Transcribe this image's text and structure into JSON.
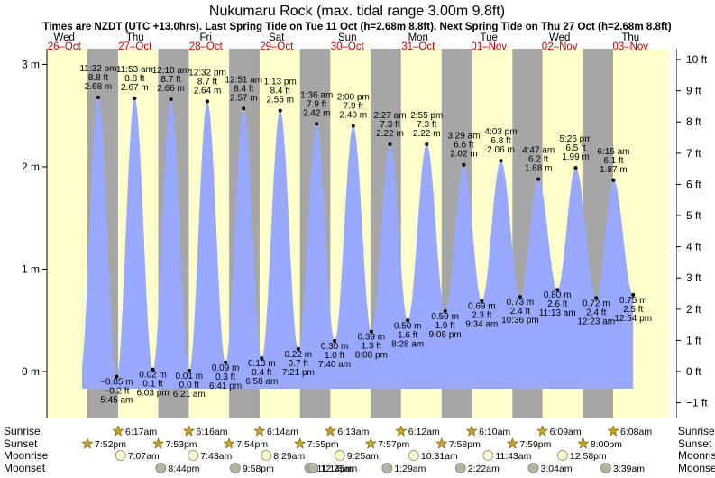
{
  "chart_data": {
    "type": "area",
    "title": "Nukumaru Rock (max. tidal range 3.00m 9.8ft)",
    "subtitle": "Times are NZDT (UTC +13.0hrs). Last Spring Tide on Tue 11 Oct (h=2.68m 8.8ft). Next Spring Tide on Thu 27 Oct (h=2.68m 8.8ft)",
    "days": [
      {
        "dow": "Wed",
        "date": "26–Oct"
      },
      {
        "dow": "Thu",
        "date": "27–Oct"
      },
      {
        "dow": "Fri",
        "date": "28–Oct"
      },
      {
        "dow": "Sat",
        "date": "29–Oct"
      },
      {
        "dow": "Sun",
        "date": "30–Oct"
      },
      {
        "dow": "Mon",
        "date": "31–Oct"
      },
      {
        "dow": "Tue",
        "date": "01–Nov"
      },
      {
        "dow": "Wed",
        "date": "02–Nov"
      },
      {
        "dow": "Thu",
        "date": "03–Nov"
      }
    ],
    "start_day": "Wed 26-Oct",
    "left_axis": {
      "unit": "m",
      "ticks": [
        0,
        1,
        2,
        3
      ],
      "tick_labels": [
        "0 m",
        "1 m",
        "2 m",
        "3 m"
      ],
      "ylim": [
        -0.32,
        3.08
      ]
    },
    "right_axis": {
      "unit": "ft",
      "ticks": [
        -1,
        0,
        1,
        2,
        3,
        4,
        5,
        6,
        7,
        8,
        9,
        10
      ],
      "tick_labels": [
        "−1 ft",
        "0 ft",
        "1 ft",
        "2 ft",
        "3 ft",
        "4 ft",
        "5 ft",
        "6 ft",
        "7 ft",
        "8 ft",
        "9 ft",
        "10 ft"
      ]
    },
    "night_shading": [
      {
        "from": "Wed 26-Oct 19:52",
        "to": "Thu 27-Oct 06:17"
      },
      {
        "from": "Thu 27-Oct 19:53",
        "to": "Fri 28-Oct 06:16"
      },
      {
        "from": "Fri 28-Oct 19:54",
        "to": "Sat 29-Oct 06:14"
      },
      {
        "from": "Sat 29-Oct 19:55",
        "to": "Sun 30-Oct 06:13"
      },
      {
        "from": "Sun 30-Oct 19:57",
        "to": "Mon 31-Oct 06:12"
      },
      {
        "from": "Mon 31-Oct 19:58",
        "to": "Tue 01-Nov 06:10"
      },
      {
        "from": "Tue 01-Nov 19:59",
        "to": "Wed 02-Nov 06:09"
      },
      {
        "from": "Wed 02-Nov 20:00",
        "to": "Thu 03-Nov 06:08"
      }
    ],
    "tides": [
      {
        "kind": "high",
        "time": "11:32 pm",
        "m": 2.68,
        "ft": "8.8 ft",
        "day_index": 0
      },
      {
        "kind": "low",
        "time": "5:45 am",
        "m": -0.05,
        "ft": "−0.2 ft",
        "day_index": 1
      },
      {
        "kind": "high",
        "time": "11:53 am",
        "m": 2.67,
        "ft": "8.8 ft",
        "day_index": 1
      },
      {
        "kind": "low",
        "time": "6:03 pm",
        "m": 0.02,
        "ft": "0.1 ft",
        "day_index": 1
      },
      {
        "kind": "high",
        "time": "12:10 am",
        "m": 2.66,
        "ft": "8.7 ft",
        "day_index": 2
      },
      {
        "kind": "low",
        "time": "6:21 am",
        "m": 0.01,
        "ft": "0.0 ft",
        "day_index": 2
      },
      {
        "kind": "high",
        "time": "12:32 pm",
        "m": 2.64,
        "ft": "8.7 ft",
        "day_index": 2
      },
      {
        "kind": "low",
        "time": "6:41 pm",
        "m": 0.09,
        "ft": "0.3 ft",
        "day_index": 2
      },
      {
        "kind": "high",
        "time": "12:51 am",
        "m": 2.57,
        "ft": "8.4 ft",
        "day_index": 3
      },
      {
        "kind": "low",
        "time": "6:58 am",
        "m": 0.13,
        "ft": "0.4 ft",
        "day_index": 3
      },
      {
        "kind": "high",
        "time": "1:13 pm",
        "m": 2.55,
        "ft": "8.4 ft",
        "day_index": 3
      },
      {
        "kind": "low",
        "time": "7:21 pm",
        "m": 0.22,
        "ft": "0.7 ft",
        "day_index": 3
      },
      {
        "kind": "high",
        "time": "1:36 am",
        "m": 2.42,
        "ft": "7.9 ft",
        "day_index": 4
      },
      {
        "kind": "low",
        "time": "7:40 am",
        "m": 0.3,
        "ft": "1.0 ft",
        "day_index": 4
      },
      {
        "kind": "high",
        "time": "2:00 pm",
        "m": 2.4,
        "ft": "7.9 ft",
        "day_index": 4
      },
      {
        "kind": "low",
        "time": "8:08 pm",
        "m": 0.39,
        "ft": "1.3 ft",
        "day_index": 4
      },
      {
        "kind": "high",
        "time": "2:27 am",
        "m": 2.22,
        "ft": "7.3 ft",
        "day_index": 5
      },
      {
        "kind": "low",
        "time": "8:28 am",
        "m": 0.5,
        "ft": "1.6 ft",
        "day_index": 5
      },
      {
        "kind": "high",
        "time": "2:55 pm",
        "m": 2.22,
        "ft": "7.3 ft",
        "day_index": 5
      },
      {
        "kind": "low",
        "time": "9:08 pm",
        "m": 0.59,
        "ft": "1.9 ft",
        "day_index": 5
      },
      {
        "kind": "high",
        "time": "3:29 am",
        "m": 2.02,
        "ft": "6.6 ft",
        "day_index": 6
      },
      {
        "kind": "low",
        "time": "9:34 am",
        "m": 0.69,
        "ft": "2.3 ft",
        "day_index": 6
      },
      {
        "kind": "high",
        "time": "4:03 pm",
        "m": 2.06,
        "ft": "6.8 ft",
        "day_index": 6
      },
      {
        "kind": "low",
        "time": "10:36 pm",
        "m": 0.73,
        "ft": "2.4 ft",
        "day_index": 6
      },
      {
        "kind": "high",
        "time": "4:47 am",
        "m": 1.88,
        "ft": "6.2 ft",
        "day_index": 7
      },
      {
        "kind": "low",
        "time": "11:13 am",
        "m": 0.8,
        "ft": "2.6 ft",
        "day_index": 7
      },
      {
        "kind": "high",
        "time": "5:26 pm",
        "m": 1.99,
        "ft": "6.5 ft",
        "day_index": 7
      },
      {
        "kind": "low",
        "time": "12:23 am",
        "m": 0.72,
        "ft": "2.4 ft",
        "day_index": 8
      },
      {
        "kind": "high",
        "time": "6:15 am",
        "m": 1.87,
        "ft": "6.1 ft",
        "day_index": 8
      },
      {
        "kind": "low",
        "time": "12:54 pm",
        "m": 0.75,
        "ft": "2.5 ft",
        "day_index": 8
      }
    ],
    "rows": {
      "sunrise": {
        "label": "Sunrise",
        "entries": [
          {
            "day_index": 1,
            "time": "6:17am"
          },
          {
            "day_index": 2,
            "time": "6:16am"
          },
          {
            "day_index": 3,
            "time": "6:14am"
          },
          {
            "day_index": 4,
            "time": "6:13am"
          },
          {
            "day_index": 5,
            "time": "6:12am"
          },
          {
            "day_index": 6,
            "time": "6:10am"
          },
          {
            "day_index": 7,
            "time": "6:09am"
          },
          {
            "day_index": 8,
            "time": "6:08am"
          }
        ]
      },
      "sunset": {
        "label": "Sunset",
        "entries": [
          {
            "day_index": 0,
            "time": "7:52pm"
          },
          {
            "day_index": 1,
            "time": "7:53pm"
          },
          {
            "day_index": 2,
            "time": "7:54pm"
          },
          {
            "day_index": 3,
            "time": "7:55pm"
          },
          {
            "day_index": 4,
            "time": "7:57pm"
          },
          {
            "day_index": 5,
            "time": "7:58pm"
          },
          {
            "day_index": 6,
            "time": "7:59pm"
          },
          {
            "day_index": 7,
            "time": "8:00pm"
          }
        ]
      },
      "moonrise": {
        "label": "Moonrise",
        "entries": [
          {
            "day_index": 1,
            "time": "7:07am"
          },
          {
            "day_index": 2,
            "time": "7:43am"
          },
          {
            "day_index": 3,
            "time": "8:29am"
          },
          {
            "day_index": 4,
            "time": "9:25am"
          },
          {
            "day_index": 5,
            "time": "10:31am"
          },
          {
            "day_index": 6,
            "time": "11:43am"
          },
          {
            "day_index": 7,
            "time": "12:58pm"
          }
        ]
      },
      "moonset": {
        "label": "Moonset",
        "entries": [
          {
            "day_index": 1,
            "time": "8:44pm"
          },
          {
            "day_index": 2,
            "time": "9:58pm"
          },
          {
            "day_index": 3,
            "time": "11:14pm"
          },
          {
            "day_index": 4,
            "time": "12:25am"
          },
          {
            "day_index": 5,
            "time": "1:29am"
          },
          {
            "day_index": 6,
            "time": "2:22am"
          },
          {
            "day_index": 7,
            "time": "3:04am"
          },
          {
            "day_index": 8,
            "time": "3:39am"
          }
        ]
      }
    },
    "colors": {
      "day": "#ffffcc",
      "night": "#a6a6a6",
      "tide_fill": "#99a9ff",
      "text": "#000000",
      "date_red": "#cc0000",
      "sun": "#c8a520",
      "moonrise": "#ffffcc",
      "moonset": "#b4b4a0"
    }
  }
}
